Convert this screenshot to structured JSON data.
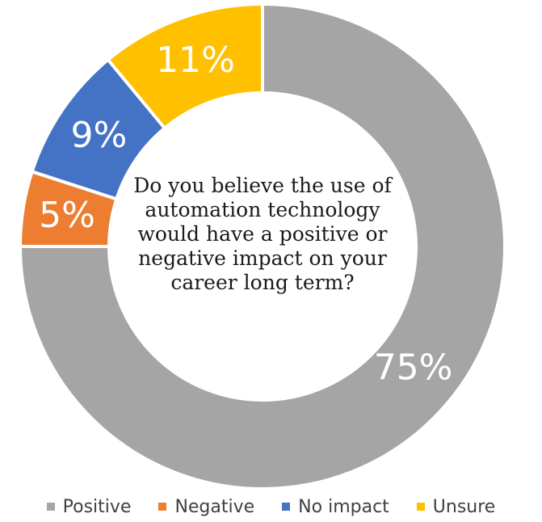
{
  "chart_data": {
    "type": "pie",
    "title": "Do you believe the use of automation technology would have a positive or negative impact on your career long term?",
    "categories": [
      "Positive",
      "Negative",
      "No impact",
      "Unsure"
    ],
    "values": [
      75,
      5,
      9,
      11
    ],
    "labels": [
      "75%",
      "5%",
      "9%",
      "11%"
    ],
    "colors": [
      "#A5A5A5",
      "#ED7D31",
      "#4472C4",
      "#FFC000"
    ],
    "legend_position": "bottom",
    "donut": true
  }
}
